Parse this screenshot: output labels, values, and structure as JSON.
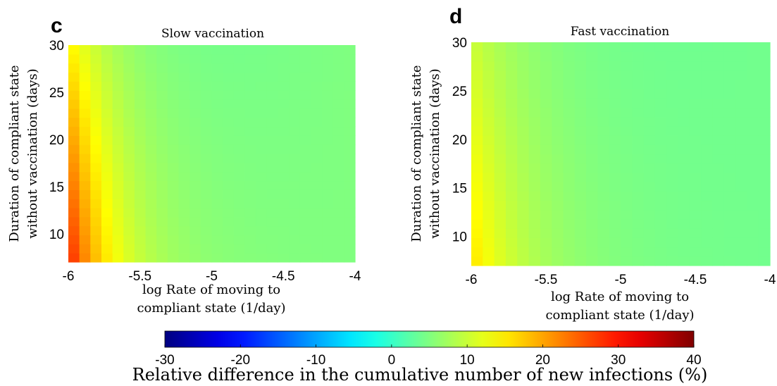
{
  "chart_data": [
    {
      "type": "heatmap",
      "panel_label": "c",
      "title": "Slow vaccination",
      "xlabel": [
        "log Rate of moving to",
        "compliant state (1/day)"
      ],
      "ylabel": [
        "Duration of compliant state",
        "without vaccination (days)"
      ],
      "xlim": [
        -6,
        -4
      ],
      "ylim": [
        7,
        30
      ],
      "xticks": [
        -6,
        -5.5,
        -5,
        -4.5,
        -4
      ],
      "xtick_labels": [
        "-6",
        "-5.5",
        "-5",
        "-4.5",
        "-4"
      ],
      "yticks": [
        10,
        15,
        20,
        25,
        30
      ],
      "ytick_labels": [
        "10",
        "15",
        "20",
        "25",
        "30"
      ],
      "values_summary": "relative difference (%) ranges from about 30 at x=-6, y=7 down to about 5 at x=-4",
      "model": {
        "max_value": 30,
        "min_value": 5,
        "decay": 2.2,
        "y_effect": 0.5
      }
    },
    {
      "type": "heatmap",
      "panel_label": "d",
      "title": "Fast vaccination",
      "xlabel": [
        "log Rate of moving to",
        "compliant state (1/day)"
      ],
      "ylabel": [
        "Duration of compliant state",
        "without vaccination (days)"
      ],
      "xlim": [
        -6,
        -4
      ],
      "ylim": [
        7,
        30
      ],
      "xticks": [
        -6,
        -5.5,
        -5,
        -4.5,
        -4
      ],
      "xtick_labels": [
        "-6",
        "-5.5",
        "-5",
        "-4.5",
        "-4"
      ],
      "yticks": [
        10,
        15,
        20,
        25,
        30
      ],
      "ytick_labels": [
        "10",
        "15",
        "20",
        "25",
        "30"
      ],
      "values_summary": "relative difference (%) ranges from about 16 at x=-6, y=7 down to about 4 at x=-4",
      "model": {
        "max_value": 16,
        "min_value": 4,
        "decay": 1.6,
        "y_effect": 0.35
      }
    }
  ],
  "colorbar": {
    "range": [
      -30,
      40
    ],
    "ticks": [
      -30,
      -20,
      -10,
      0,
      10,
      20,
      30,
      40
    ],
    "tick_labels": [
      "-30",
      "-20",
      "-10",
      "0",
      "10",
      "20",
      "30",
      "40"
    ],
    "colormap": "jet",
    "label": "Relative difference in the cumulative number of new infections (%)"
  }
}
